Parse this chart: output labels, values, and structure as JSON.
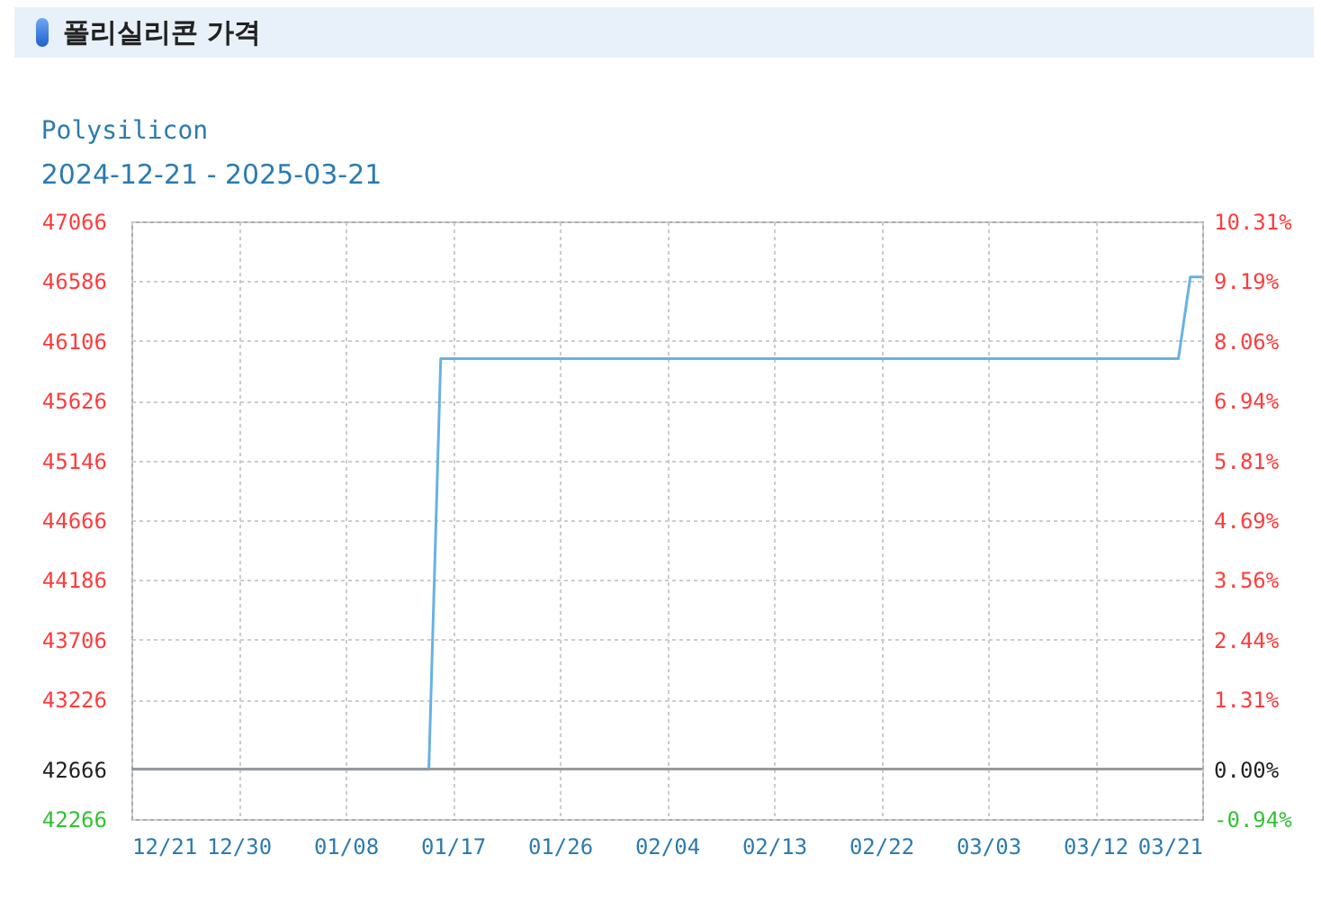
{
  "chart_data": {
    "type": "line",
    "title": "폴리실리콘 가격",
    "subtitle": "Polysilicon",
    "annotations": [
      "2024-12-21 - 2025-03-21"
    ],
    "x": [
      "2024-12-21",
      "2025-01-15",
      "2025-01-16",
      "2025-03-19",
      "2025-03-20",
      "2025-03-21"
    ],
    "series": [
      {
        "color": "#68b2e3",
        "values": [
          42666,
          42666,
          45963,
          45963,
          46620,
          46620
        ]
      }
    ],
    "xlim": [
      "2024-12-21",
      "2025-03-21"
    ],
    "xticks": [
      {
        "value": "2024-12-21",
        "label": "12/21"
      },
      {
        "value": "2024-12-30",
        "label": "12/30"
      },
      {
        "value": "2025-01-08",
        "label": "01/08"
      },
      {
        "value": "2025-01-17",
        "label": "01/17"
      },
      {
        "value": "2025-01-26",
        "label": "01/26"
      },
      {
        "value": "2025-02-04",
        "label": "02/04"
      },
      {
        "value": "2025-02-13",
        "label": "02/13"
      },
      {
        "value": "2025-02-22",
        "label": "02/22"
      },
      {
        "value": "2025-03-03",
        "label": "03/03"
      },
      {
        "value": "2025-03-12",
        "label": "03/12"
      },
      {
        "value": "2025-03-21",
        "label": "03/21"
      }
    ],
    "ylim": [
      42266,
      47066
    ],
    "yticks": [
      42266,
      42666,
      43226,
      43706,
      44186,
      44666,
      45146,
      45626,
      46106,
      46586,
      47066
    ],
    "y2lim": [
      -0.94,
      10.31
    ],
    "y2ticks": [
      {
        "value": -0.94,
        "label": "-0.94%"
      },
      {
        "value": 0,
        "label": "0.00%"
      },
      {
        "value": 1.31,
        "label": "1.31%"
      },
      {
        "value": 2.44,
        "label": "2.44%"
      },
      {
        "value": 3.56,
        "label": "3.56%"
      },
      {
        "value": 4.69,
        "label": "4.69%"
      },
      {
        "value": 5.81,
        "label": "5.81%"
      },
      {
        "value": 6.94,
        "label": "6.94%"
      },
      {
        "value": 8.06,
        "label": "8.06%"
      },
      {
        "value": 9.19,
        "label": "9.19%"
      },
      {
        "value": 10.31,
        "label": "10.31%"
      }
    ],
    "ref_lines": [
      {
        "axis": "y2",
        "value": 0,
        "color": "#999999"
      }
    ],
    "grid": true,
    "marker": "none",
    "line_style": "solid"
  }
}
